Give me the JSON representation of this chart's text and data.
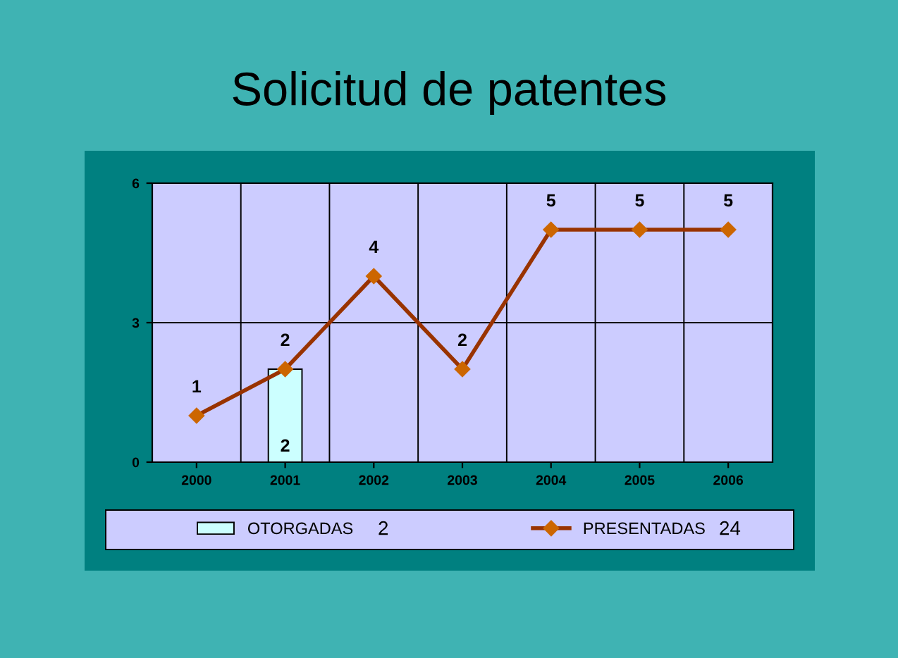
{
  "chart_data": {
    "type": "bar",
    "title": "Solicitud de patentes",
    "categories": [
      "2000",
      "2001",
      "2002",
      "2003",
      "2004",
      "2005",
      "2006"
    ],
    "series": [
      {
        "name": "OTORGADAS",
        "color": "#ccffff",
        "values": [
          null,
          2,
          null,
          null,
          null,
          null,
          null
        ]
      },
      {
        "name": "PRESENTADAS",
        "type": "line",
        "color": "#993300",
        "values": [
          1,
          2,
          4,
          2,
          5,
          5,
          5
        ]
      }
    ],
    "ylim": [
      0,
      6
    ],
    "yticks": [
      0,
      3,
      6
    ],
    "grid": true,
    "legend": "bottom",
    "marker": "diamond",
    "data_labels": true,
    "annotations": [
      "2",
      "24"
    ]
  }
}
